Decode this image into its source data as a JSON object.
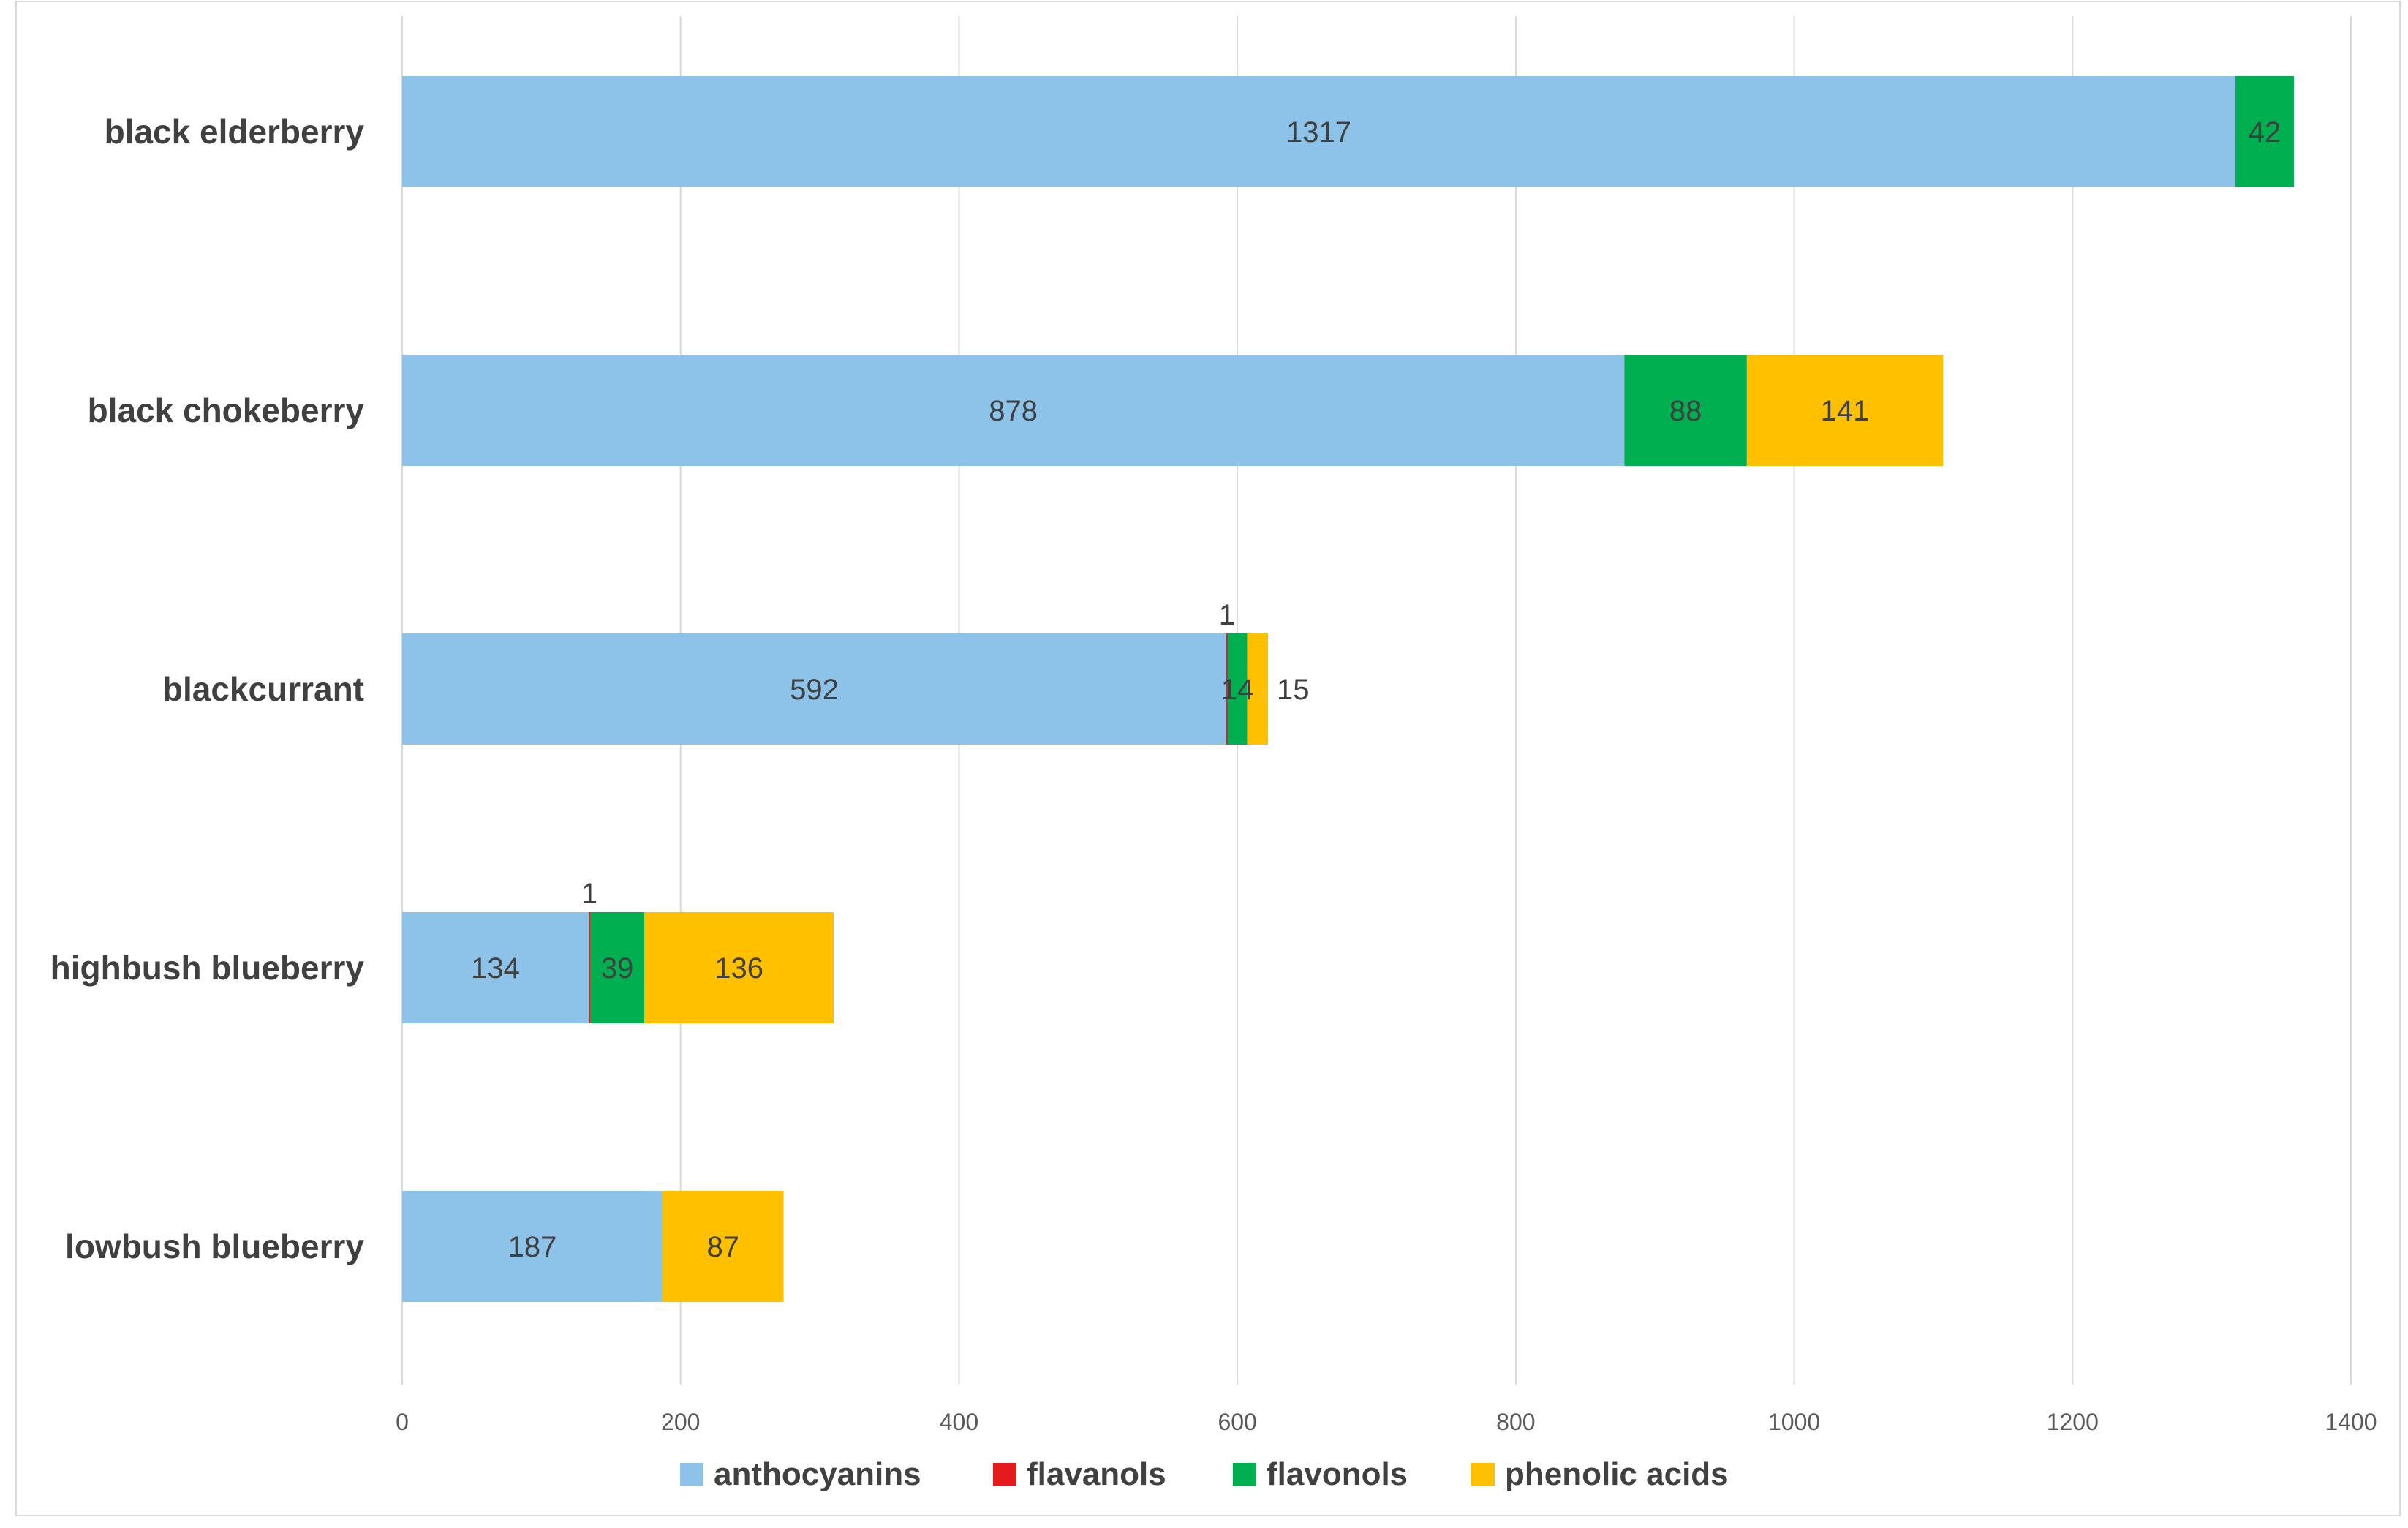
{
  "chart_data": {
    "type": "bar",
    "orientation": "horizontal",
    "stacked": true,
    "title": "",
    "xlabel": "",
    "ylabel": "",
    "xlim": [
      0,
      1400
    ],
    "x_ticks": [
      0,
      200,
      400,
      600,
      800,
      1000,
      1200,
      1400
    ],
    "grid": true,
    "legend_position": "bottom",
    "categories": [
      "black elderberry",
      "black chokeberry",
      "blackcurrant",
      "highbush blueberry",
      "lowbush blueberry"
    ],
    "series": [
      {
        "name": "anthocyanins",
        "color": "#8DC3E8",
        "values": [
          1317,
          878,
          592,
          134,
          187
        ]
      },
      {
        "name": "flavanols",
        "color": "#E41A1C",
        "values": [
          0,
          0,
          1,
          1,
          0
        ]
      },
      {
        "name": "flavonols",
        "color": "#00B050",
        "values": [
          42,
          88,
          14,
          39,
          0
        ]
      },
      {
        "name": "phenolic acids",
        "color": "#FFC000",
        "values": [
          0,
          141,
          15,
          136,
          87
        ]
      }
    ]
  }
}
